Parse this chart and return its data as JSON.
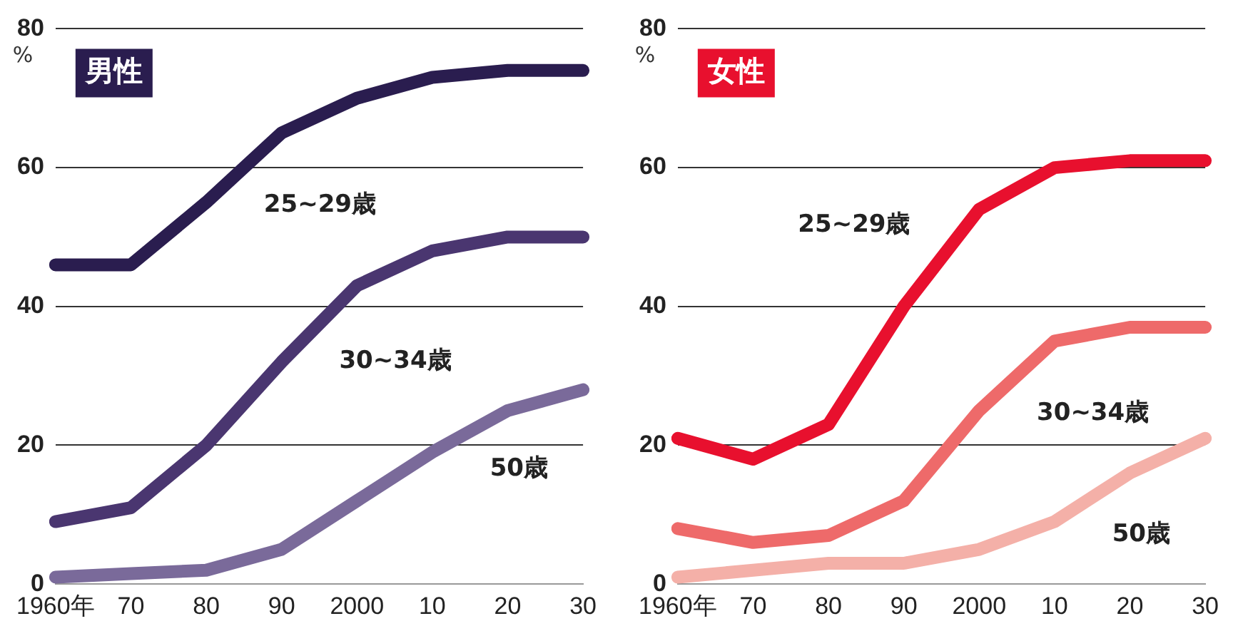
{
  "chart_data": [
    {
      "type": "line",
      "title": "男性",
      "ylabel": "%",
      "categories": [
        "1960年",
        "70",
        "80",
        "90",
        "2000",
        "10",
        "20",
        "30"
      ],
      "ylim": [
        0,
        80
      ],
      "yticks": [
        0,
        20,
        40,
        60,
        80
      ],
      "grid": "y",
      "legend": false,
      "series": [
        {
          "name": "25~29歳",
          "color": "#2a1d4f",
          "values": [
            46,
            46,
            55,
            65,
            70,
            73,
            74,
            74
          ]
        },
        {
          "name": "30~34歳",
          "color": "#4a3670",
          "values": [
            9,
            11,
            20,
            32,
            43,
            48,
            50,
            50
          ]
        },
        {
          "name": "50歳",
          "color": "#7a6a9a",
          "values": [
            1,
            1.5,
            2,
            5,
            12,
            19,
            25,
            28
          ]
        }
      ]
    },
    {
      "type": "line",
      "title": "女性",
      "ylabel": "%",
      "categories": [
        "1960年",
        "70",
        "80",
        "90",
        "2000",
        "10",
        "20",
        "30"
      ],
      "ylim": [
        0,
        80
      ],
      "yticks": [
        0,
        20,
        40,
        60,
        80
      ],
      "grid": "y",
      "legend": false,
      "series": [
        {
          "name": "25~29歳",
          "color": "#e8102e",
          "values": [
            21,
            18,
            23,
            40,
            54,
            60,
            61,
            61
          ]
        },
        {
          "name": "30~34歳",
          "color": "#ee6a6a",
          "values": [
            8,
            6,
            7,
            12,
            25,
            35,
            37,
            37
          ]
        },
        {
          "name": "50歳",
          "color": "#f4b0a8",
          "values": [
            1,
            2,
            3,
            3,
            5,
            9,
            16,
            21
          ]
        }
      ]
    }
  ]
}
